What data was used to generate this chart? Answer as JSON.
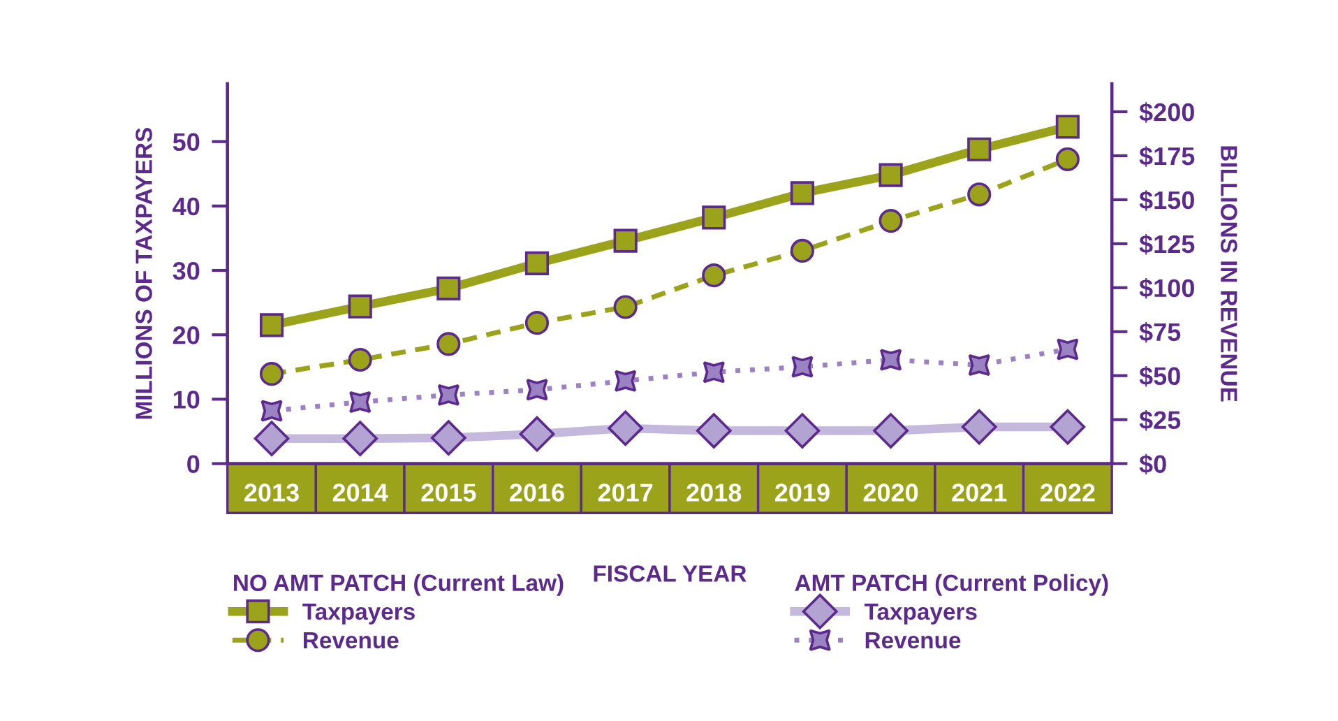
{
  "chart_data": {
    "type": "line",
    "xlabel": "FISCAL YEAR",
    "ylabel": "MILLIONS OF TAXPAYERS",
    "y2label": "BILLIONS IN REVENUE",
    "categories": [
      "2013",
      "2014",
      "2015",
      "2016",
      "2017",
      "2018",
      "2019",
      "2020",
      "2021",
      "2022"
    ],
    "legend_title": [
      "NO AMT PATCH (Current Law)",
      "AMT PATCH (Current Policy)"
    ],
    "series": [
      {
        "name": "Taxpayers",
        "color": "#9aa31a",
        "marker": "square",
        "line_style": "solid",
        "values": [
          21.5,
          24.4,
          27.2,
          31.1,
          34.6,
          38.2,
          42.0,
          44.8,
          48.8,
          52.3
        ]
      },
      {
        "name": "Revenue",
        "color": "#9aa31a",
        "marker": "circle",
        "line_style": "dashed",
        "axis": "y2",
        "values": [
          51,
          59,
          68,
          80,
          89,
          107,
          121,
          138,
          153,
          173
        ]
      },
      {
        "name": "Taxpayers",
        "color": "#c4b8dc",
        "marker": "diamond",
        "line_style": "solid",
        "values": [
          3.9,
          3.9,
          4.0,
          4.6,
          5.5,
          5.1,
          5.1,
          5.1,
          5.7,
          5.7
        ]
      },
      {
        "name": "Revenue",
        "color": "#9b82c3",
        "marker": "star",
        "line_style": "dotted",
        "axis": "y2",
        "values": [
          30,
          35,
          39,
          42,
          47,
          52,
          55,
          59,
          56,
          65
        ]
      }
    ],
    "ylim": [
      0,
      59
    ],
    "yticks": [
      0,
      10,
      20,
      30,
      40,
      50
    ],
    "y2lim": [
      0,
      216
    ],
    "y2ticks": [
      {
        "value": 0,
        "label": "$0"
      },
      {
        "value": 25,
        "label": "$25"
      },
      {
        "value": 50,
        "label": "$50"
      },
      {
        "value": 75,
        "label": "$75"
      },
      {
        "value": 100,
        "label": "$100"
      },
      {
        "value": 125,
        "label": "$125"
      },
      {
        "value": 150,
        "label": "$150"
      },
      {
        "value": 175,
        "label": "$175"
      },
      {
        "value": 200,
        "label": "$200"
      }
    ],
    "grid": false,
    "legend": "bottom"
  }
}
